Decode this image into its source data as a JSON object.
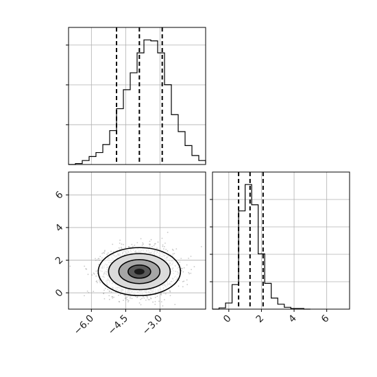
{
  "chart_data": [
    {
      "type": "histogram",
      "panel": "top-left",
      "x": [
        -7.0,
        -6.7,
        -6.4,
        -6.1,
        -5.8,
        -5.5,
        -5.2,
        -4.9,
        -4.6,
        -4.3,
        -4.0,
        -3.7,
        -3.4,
        -3.1,
        -2.8,
        -2.5,
        -2.2,
        -1.9,
        -1.6,
        -1.3,
        -1.0
      ],
      "counts": [
        0,
        1,
        4,
        8,
        12,
        20,
        34,
        56,
        75,
        92,
        112,
        125,
        124,
        112,
        80,
        50,
        33,
        19,
        9,
        4,
        1
      ],
      "quantiles": [
        -4.9,
        -3.9,
        -2.9
      ],
      "xlim": [
        -7.0,
        -1.0
      ],
      "y_ticks": [],
      "grid": true
    },
    {
      "type": "scatter-density",
      "panel": "bottom-left",
      "center": [
        -3.9,
        1.3
      ],
      "spread": [
        0.75,
        0.7
      ],
      "xlim": [
        -7.0,
        -1.0
      ],
      "ylim": [
        -1.0,
        7.4
      ],
      "x_ticks": [
        -6.0,
        -4.5,
        -3.0
      ],
      "x_tick_labels": [
        "−6.0",
        "−4.5",
        "−3.0"
      ],
      "y_ticks": [
        0,
        2,
        4,
        6
      ],
      "y_tick_labels": [
        "0",
        "2",
        "4",
        "6"
      ],
      "contours": true,
      "grid": true
    },
    {
      "type": "histogram",
      "panel": "bottom-right",
      "x": [
        -1.0,
        -0.6,
        -0.2,
        0.2,
        0.6,
        1.0,
        1.4,
        1.8,
        2.2,
        2.6,
        3.0,
        3.4,
        3.8,
        4.2,
        4.6,
        5.0
      ],
      "counts": [
        0,
        2,
        10,
        40,
        160,
        203,
        170,
        90,
        42,
        18,
        8,
        3,
        1,
        1,
        0
      ],
      "quantiles": [
        0.6,
        1.3,
        2.1
      ],
      "xlim": [
        -1.0,
        7.4
      ],
      "x_ticks": [
        0,
        2,
        4,
        6
      ],
      "x_tick_labels": [
        "0",
        "2",
        "4",
        "6"
      ],
      "y_ticks": [],
      "grid": true
    }
  ]
}
